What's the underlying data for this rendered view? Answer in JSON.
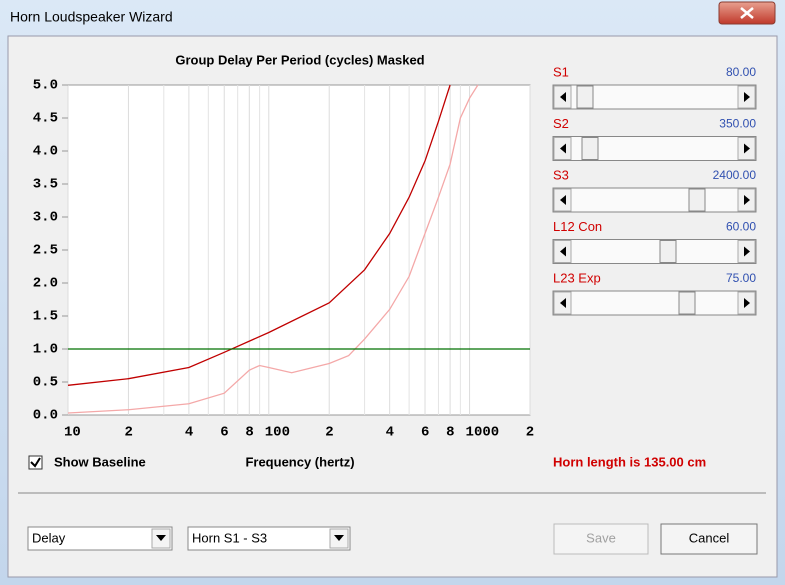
{
  "window": {
    "title": "Horn Loudspeaker Wizard"
  },
  "chart_data": {
    "type": "line",
    "title": "Group Delay Per Period (cycles)   Masked",
    "x_label": "Frequency (hertz)",
    "x_scale": "log",
    "grid": true,
    "xlim": [
      10,
      2000
    ],
    "xticks": [
      {
        "value": 10,
        "label": "10"
      },
      {
        "value": 20,
        "label": "2"
      },
      {
        "value": 40,
        "label": "4"
      },
      {
        "value": 60,
        "label": "6"
      },
      {
        "value": 80,
        "label": "8"
      },
      100,
      {
        "value": 200,
        "label": "2"
      },
      {
        "value": 400,
        "label": "4"
      },
      {
        "value": 600,
        "label": "6"
      },
      {
        "value": 800,
        "label": "8"
      },
      1000,
      {
        "value": 2000,
        "label": "2"
      }
    ],
    "xminor": [
      30,
      50,
      70,
      90,
      300,
      500,
      700,
      900
    ],
    "ylim": [
      0,
      5
    ],
    "yticks": [
      {
        "value": 0,
        "label": "0.0"
      },
      0.5,
      {
        "value": 1,
        "label": "1.0"
      },
      1.5,
      {
        "value": 2,
        "label": "2.0"
      },
      2.5,
      {
        "value": 3,
        "label": "3.0"
      },
      3.5,
      {
        "value": 4,
        "label": "4.0"
      },
      4.5,
      {
        "value": 5,
        "label": "5.0"
      }
    ],
    "series": [
      {
        "color": "#c00000",
        "x": [
          10,
          20,
          40,
          60,
          100,
          200,
          300,
          400,
          500,
          600,
          700,
          800
        ],
        "values": [
          0.45,
          0.55,
          0.72,
          0.95,
          1.25,
          1.7,
          2.2,
          2.75,
          3.3,
          3.85,
          4.45,
          5.0
        ]
      },
      {
        "color": "#f4a8a8",
        "x": [
          10,
          20,
          40,
          60,
          80,
          90,
          100,
          130,
          200,
          250,
          300,
          400,
          500,
          600,
          700,
          800,
          900,
          1000,
          1100
        ],
        "values": [
          0.03,
          0.08,
          0.17,
          0.33,
          0.68,
          0.75,
          0.72,
          0.64,
          0.78,
          0.9,
          1.15,
          1.6,
          2.1,
          2.75,
          3.3,
          3.8,
          4.5,
          4.8,
          5.0
        ]
      },
      {
        "color": "#007000",
        "x": [
          10,
          2000
        ],
        "values": [
          1,
          1
        ]
      }
    ]
  },
  "sliders": [
    {
      "label": "S1",
      "value": "80.00"
    },
    {
      "label": "S2",
      "value": "350.00"
    },
    {
      "label": "S3",
      "value": "2400.00"
    },
    {
      "label": "L12  Con",
      "value": "60.00"
    },
    {
      "label": "L23  Exp",
      "value": "75.00"
    }
  ],
  "baseline_checkbox": "Show Baseline",
  "horn_length": "Horn length is 135.00 cm",
  "dropdowns": [
    "Delay",
    "Horn S1 - S3"
  ],
  "buttons": [
    "Save",
    "Cancel"
  ]
}
